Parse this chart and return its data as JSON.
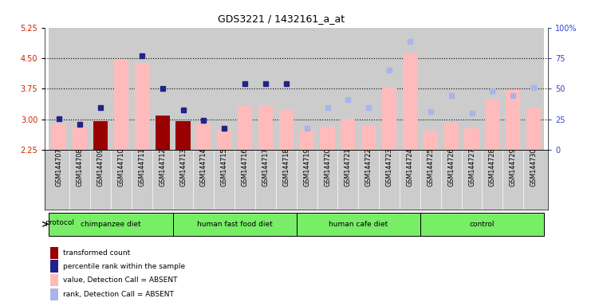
{
  "title": "GDS3221 / 1432161_a_at",
  "samples": [
    "GSM144707",
    "GSM144708",
    "GSM144709",
    "GSM144710",
    "GSM144711",
    "GSM144712",
    "GSM144713",
    "GSM144714",
    "GSM144715",
    "GSM144716",
    "GSM144717",
    "GSM144718",
    "GSM144719",
    "GSM144720",
    "GSM144721",
    "GSM144722",
    "GSM144723",
    "GSM144724",
    "GSM144725",
    "GSM144726",
    "GSM144727",
    "GSM144728",
    "GSM144729",
    "GSM144730"
  ],
  "pink_bars": [
    2.88,
    2.82,
    2.97,
    4.48,
    4.38,
    3.08,
    2.95,
    2.87,
    2.75,
    3.32,
    3.35,
    3.25,
    2.75,
    2.82,
    3.02,
    2.84,
    3.78,
    4.62,
    2.72,
    2.92,
    2.79,
    3.5,
    3.72,
    3.28
  ],
  "dark_red_bars": [
    null,
    null,
    2.96,
    null,
    null,
    3.1,
    2.95,
    null,
    null,
    null,
    null,
    null,
    null,
    null,
    null,
    null,
    null,
    null,
    null,
    null,
    null,
    null,
    null,
    null
  ],
  "blue_dots": [
    3.02,
    2.88,
    3.28,
    null,
    4.55,
    3.75,
    3.22,
    2.97,
    2.78,
    3.88,
    3.88,
    3.88,
    null,
    null,
    null,
    null,
    null,
    null,
    null,
    null,
    null,
    null,
    null,
    null
  ],
  "light_blue_dots": [
    null,
    null,
    null,
    null,
    null,
    null,
    null,
    null,
    null,
    null,
    null,
    null,
    2.78,
    3.28,
    3.48,
    3.28,
    4.2,
    4.9,
    3.2,
    3.58,
    3.15,
    3.7,
    3.58,
    3.78
  ],
  "groups": [
    {
      "label": "chimpanzee diet",
      "start": 0,
      "end": 5
    },
    {
      "label": "human fast food diet",
      "start": 6,
      "end": 11
    },
    {
      "label": "human cafe diet",
      "start": 12,
      "end": 17
    },
    {
      "label": "control",
      "start": 18,
      "end": 23
    }
  ],
  "ylim_left": [
    2.25,
    5.25
  ],
  "ylim_right": [
    0,
    100
  ],
  "yticks_left": [
    2.25,
    3.0,
    3.75,
    4.5,
    5.25
  ],
  "yticks_right": [
    0,
    25,
    50,
    75,
    100
  ],
  "left_axis_color": "#cc2200",
  "right_axis_color": "#3344cc",
  "col_bg": "#cccccc",
  "pink_color": "#ffbbbb",
  "dark_red_color": "#990000",
  "dark_blue_color": "#22228a",
  "light_blue_color": "#aab4e8",
  "green_color": "#77ee66"
}
